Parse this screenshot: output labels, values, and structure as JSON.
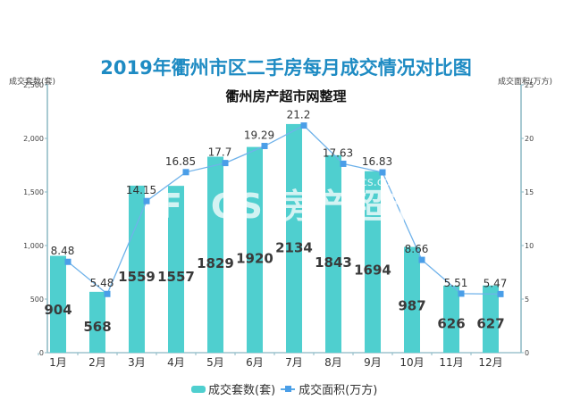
{
  "title": "2019年衢州市区二手房每月成交情况对比图",
  "subtitle": "衢州房产超市网整理",
  "left_axis_title": "成交套数(套)",
  "right_axis_title": "成交面积(万方)",
  "watermark": {
    "logo": "FCCS",
    "text": "房产超市",
    "url": "fccs.com"
  },
  "legend": [
    {
      "label": "成交套数(套)",
      "type": "bar",
      "color": "#4fcfcf"
    },
    {
      "label": "成交面积(万方)",
      "type": "line",
      "color": "#4a9ee8"
    }
  ],
  "chart_data": {
    "type": "bar+line",
    "title": "2019年衢州市区二手房每月成交情况对比图",
    "subtitle": "衢州房产超市网整理",
    "categories": [
      "1月",
      "2月",
      "3月",
      "4月",
      "5月",
      "6月",
      "7月",
      "8月",
      "9月",
      "10月",
      "11月",
      "12月"
    ],
    "series": [
      {
        "name": "成交套数(套)",
        "type": "bar",
        "axis": "left",
        "color": "#4fcfcf",
        "values": [
          904,
          568,
          1559,
          1557,
          1829,
          1920,
          2134,
          1843,
          1694,
          987,
          626,
          627
        ]
      },
      {
        "name": "成交面积(万方)",
        "type": "line",
        "axis": "right",
        "color": "#4a9ee8",
        "values": [
          8.48,
          5.48,
          14.15,
          16.85,
          17.7,
          19.29,
          21.2,
          17.63,
          16.83,
          8.66,
          5.51,
          5.47
        ]
      }
    ],
    "ylabel": "成交套数(套)",
    "ylim": [
      0,
      2500
    ],
    "yticks": [
      "0",
      "500",
      "1,000",
      "1,500",
      "2,000",
      "2,500"
    ],
    "y2label": "成交面积(万方)",
    "y2lim": [
      0,
      25
    ],
    "y2ticks": [
      "0",
      "5",
      "10",
      "15",
      "20",
      "25"
    ],
    "grid": false,
    "legend_position": "bottom"
  }
}
